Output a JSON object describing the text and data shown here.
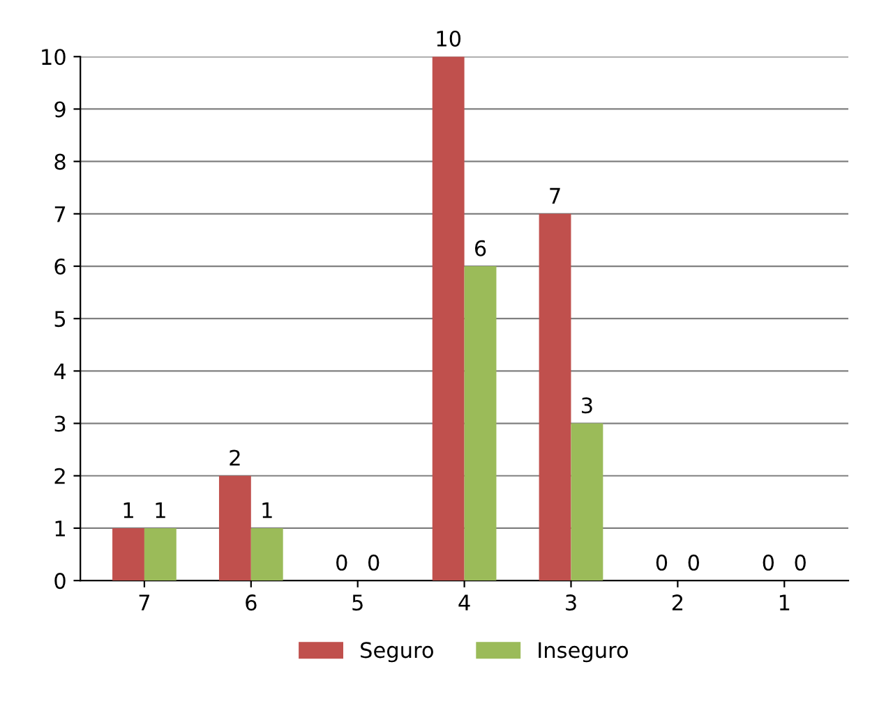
{
  "chart_data": {
    "type": "bar",
    "categories": [
      "7",
      "6",
      "5",
      "4",
      "3",
      "2",
      "1"
    ],
    "series": [
      {
        "name": "Seguro",
        "color": "#c0504d",
        "values": [
          1,
          2,
          0,
          10,
          7,
          0,
          0
        ]
      },
      {
        "name": "Inseguro",
        "color": "#9bbb59",
        "values": [
          1,
          1,
          0,
          6,
          3,
          0,
          0
        ]
      }
    ],
    "ylim": [
      0,
      10
    ],
    "yticks": [
      0,
      1,
      2,
      3,
      4,
      5,
      6,
      7,
      8,
      9,
      10
    ],
    "grid": "y",
    "legend": "bottom",
    "data_labels": true
  }
}
